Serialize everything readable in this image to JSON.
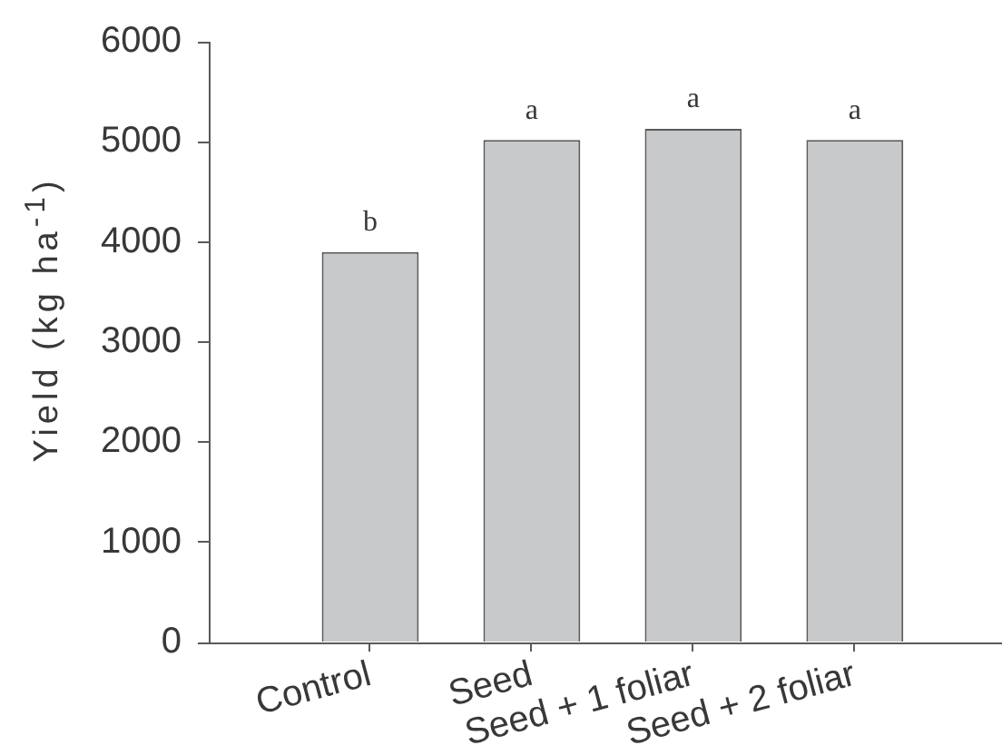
{
  "chart_data": {
    "type": "bar",
    "ylabel": "Yield (kg ha$^{-1}$)",
    "categories": [
      "Control",
      "Seed",
      "Seed + 1 foliar",
      "Seed + 2 foliar"
    ],
    "values": [
      3900,
      5020,
      5130,
      5020
    ],
    "color": "#c8c9cb",
    "ylim": [
      0,
      6000
    ],
    "yticks": [
      0,
      1000,
      2000,
      3000,
      4000,
      5000,
      6000
    ],
    "annotations": [
      {
        "text": "b",
        "x": "Control",
        "y": 3900
      },
      {
        "text": "a",
        "x": "Seed",
        "y": 5020
      },
      {
        "text": "a",
        "x": "Seed + 1 foliar",
        "y": 5130
      },
      {
        "text": "a",
        "x": "Seed + 2 foliar",
        "y": 5020
      }
    ]
  }
}
